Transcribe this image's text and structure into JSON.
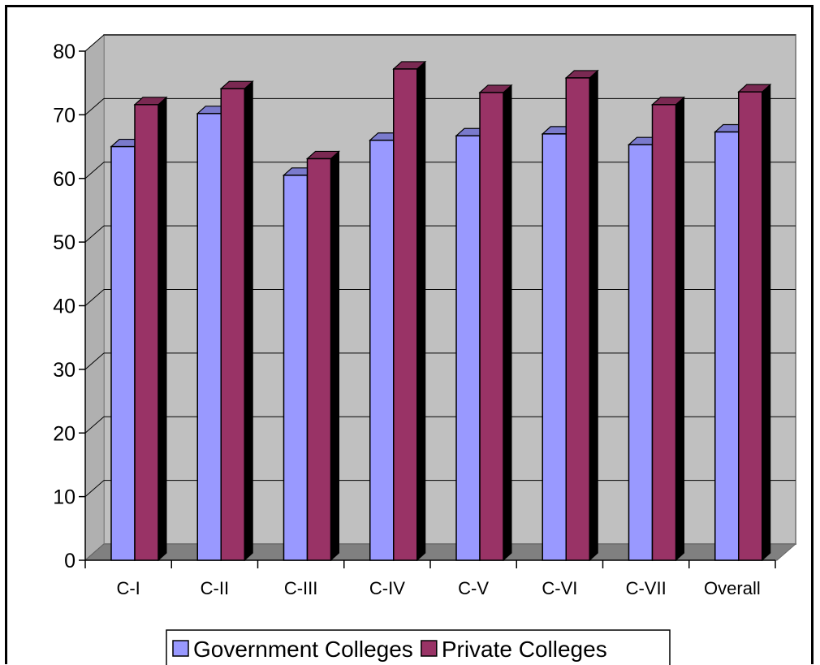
{
  "chart_data": {
    "type": "bar",
    "title": "",
    "xlabel": "",
    "ylabel": "",
    "categories": [
      "C-I",
      "C-II",
      "C-III",
      "C-IV",
      "C-V",
      "C-VI",
      "C-VII",
      "Overall"
    ],
    "series": [
      {
        "name": "Government Colleges",
        "values": [
          65,
          70.2,
          60.5,
          66,
          66.7,
          67,
          65.3,
          67.3
        ],
        "color": "#9999ff"
      },
      {
        "name": "Private Colleges",
        "values": [
          71.6,
          74.1,
          63.1,
          77.2,
          73.5,
          75.8,
          71.6,
          73.6
        ],
        "color": "#993366"
      }
    ],
    "ylim": [
      0,
      80
    ],
    "yticks": [
      0,
      10,
      20,
      30,
      40,
      50,
      60,
      70,
      80
    ],
    "grid": true,
    "style": "3d-column",
    "wall_color": "#c0c0c0",
    "floor_color": "#808080",
    "legend_position": "bottom"
  }
}
